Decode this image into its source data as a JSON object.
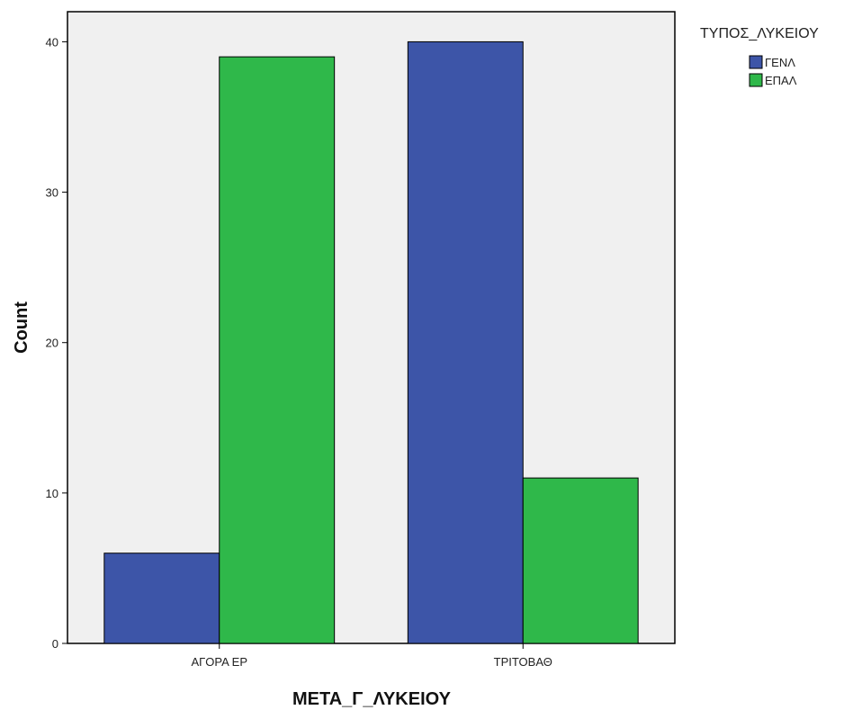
{
  "chart_data": {
    "type": "bar",
    "xlabel": "ΜΕΤΑ_Γ_ΛΥΚΕΙΟΥ",
    "ylabel": "Count",
    "categories": [
      "ΑΓΟΡΑ ΕΡ",
      "ΤΡΙΤΟΒΑΘ"
    ],
    "series": [
      {
        "name": "ΓΕΝΛ",
        "values": [
          6,
          40
        ],
        "color": "#3d55a8"
      },
      {
        "name": "ΕΠΑΛ",
        "values": [
          39,
          11
        ],
        "color": "#2fb84a"
      }
    ],
    "ylim": [
      0,
      42
    ],
    "yticks": [
      0,
      10,
      20,
      30,
      40
    ],
    "grid": false,
    "legend": {
      "title": "ΤΥΠΟΣ_ΛΥΚΕΙΟΥ",
      "position": "top-right"
    },
    "plot_background": "#f0f0f0"
  }
}
